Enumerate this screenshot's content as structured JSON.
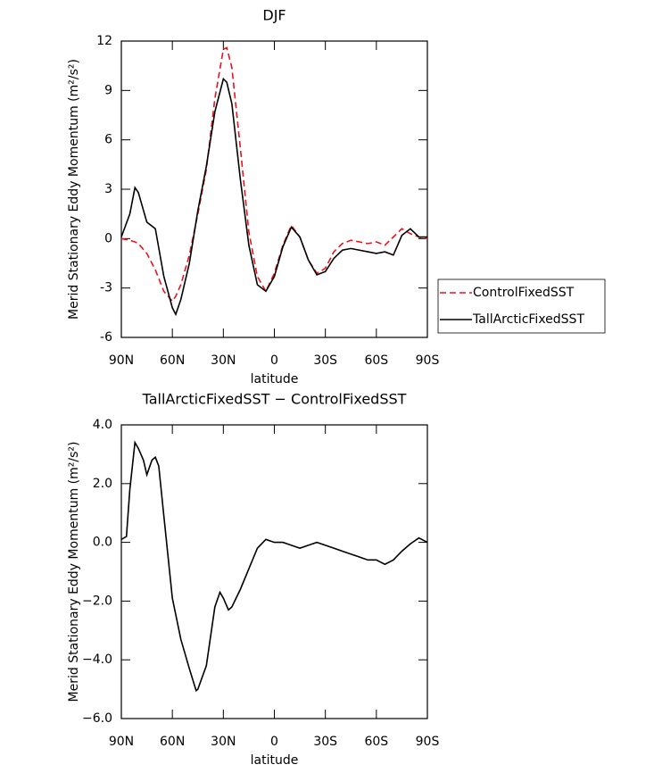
{
  "chart_data": [
    {
      "type": "line",
      "title": "DJF",
      "xlabel": "latitude",
      "ylabel": "Merid Stationary Eddy Momentum (m²/s²)",
      "x": [
        90,
        85,
        82,
        80,
        75,
        70,
        65,
        60,
        58,
        55,
        50,
        45,
        40,
        35,
        30,
        28,
        25,
        20,
        15,
        10,
        5,
        0,
        -5,
        -10,
        -15,
        -20,
        -25,
        -30,
        -35,
        -40,
        -45,
        -50,
        -55,
        -60,
        -65,
        -70,
        -75,
        -80,
        -85,
        -90
      ],
      "series": [
        {
          "name": "ControlFixedSST",
          "color": "#e8141c",
          "line_style": "dashed",
          "values": [
            0,
            -0.1,
            -0.2,
            -0.3,
            -0.9,
            -1.9,
            -3.2,
            -3.8,
            -3.5,
            -2.8,
            -1.0,
            1.5,
            4.2,
            8.5,
            11.5,
            11.6,
            10.4,
            5.5,
            0.4,
            -2.3,
            -3.2,
            -2.1,
            -0.4,
            0.8,
            0.1,
            -1.3,
            -2.1,
            -1.8,
            -0.8,
            -0.3,
            -0.1,
            -0.2,
            -0.3,
            -0.2,
            -0.4,
            0.1,
            0.6,
            0.3,
            0.1,
            0
          ]
        },
        {
          "name": "TallArcticFixedSST",
          "color": "#000000",
          "line_style": "solid",
          "values": [
            0.1,
            1.5,
            3.1,
            2.8,
            1.0,
            0.6,
            -2.3,
            -4.2,
            -4.6,
            -3.7,
            -1.5,
            1.7,
            4.4,
            7.7,
            9.7,
            9.5,
            8.2,
            3.6,
            -0.4,
            -2.8,
            -3.2,
            -2.3,
            -0.5,
            0.7,
            0.1,
            -1.3,
            -2.2,
            -2.0,
            -1.2,
            -0.7,
            -0.6,
            -0.7,
            -0.8,
            -0.9,
            -0.8,
            -1.0,
            0.2,
            0.6,
            0.1,
            0.1
          ]
        }
      ],
      "xlim": [
        90,
        -90
      ],
      "xticks": [
        {
          "value": 90,
          "label": "90N"
        },
        {
          "value": 60,
          "label": "60N"
        },
        {
          "value": 30,
          "label": "30N"
        },
        0,
        {
          "value": -30,
          "label": "30S"
        },
        {
          "value": -60,
          "label": "60S"
        },
        {
          "value": -90,
          "label": "90S"
        }
      ],
      "ylim": [
        -6,
        12
      ],
      "yticks": [
        -6,
        -3,
        0,
        3,
        6,
        9,
        12
      ],
      "legend": "right"
    },
    {
      "type": "line",
      "title": "TallArcticFixedSST − ControlFixedSST",
      "xlabel": "latitude",
      "ylabel": "Merid Stationary Eddy Momentum (m²/s²)",
      "x": [
        90,
        87,
        85,
        82,
        80,
        77,
        75,
        72,
        70,
        68,
        65,
        60,
        55,
        50,
        46,
        45,
        40,
        35,
        32,
        30,
        27,
        25,
        20,
        15,
        10,
        5,
        0,
        -5,
        -10,
        -15,
        -20,
        -25,
        -30,
        -35,
        -40,
        -45,
        -50,
        -55,
        -60,
        -65,
        -70,
        -75,
        -80,
        -85,
        -90
      ],
      "series": [
        {
          "color": "#000000",
          "line_style": "solid",
          "values": [
            0.1,
            0.2,
            1.8,
            3.4,
            3.2,
            2.8,
            2.3,
            2.8,
            2.9,
            2.6,
            0.9,
            -1.9,
            -3.3,
            -4.3,
            -5.05,
            -5.0,
            -4.2,
            -2.2,
            -1.7,
            -1.9,
            -2.3,
            -2.2,
            -1.6,
            -0.9,
            -0.2,
            0.1,
            0.0,
            0.0,
            -0.1,
            -0.2,
            -0.1,
            0.0,
            -0.1,
            -0.2,
            -0.3,
            -0.4,
            -0.5,
            -0.6,
            -0.6,
            -0.75,
            -0.6,
            -0.3,
            -0.05,
            0.15,
            0.0
          ]
        }
      ],
      "xlim": [
        90,
        -90
      ],
      "xticks": [
        {
          "value": 90,
          "label": "90N"
        },
        {
          "value": 60,
          "label": "60N"
        },
        {
          "value": 30,
          "label": "30N"
        },
        0,
        {
          "value": -30,
          "label": "30S"
        },
        {
          "value": -60,
          "label": "60S"
        },
        {
          "value": -90,
          "label": "90S"
        }
      ],
      "ylim": [
        -6,
        4
      ],
      "yticks": [
        {
          "value": -6,
          "label": "−6.0"
        },
        {
          "value": -4,
          "label": "−4.0"
        },
        {
          "value": -2,
          "label": "−2.0"
        },
        {
          "value": 0,
          "label": "0.0"
        },
        {
          "value": 2,
          "label": "2.0"
        },
        {
          "value": 4,
          "label": "4.0"
        }
      ]
    }
  ]
}
